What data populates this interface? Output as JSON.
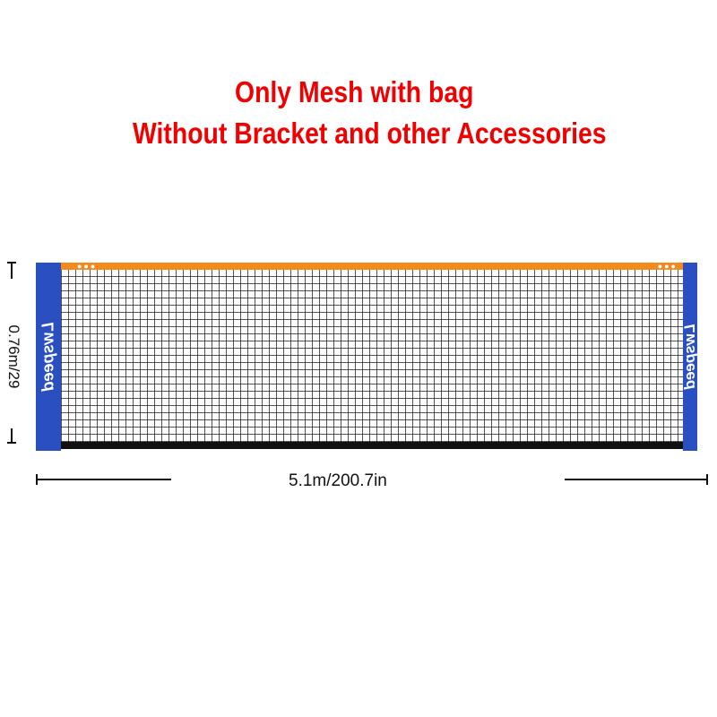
{
  "headline": {
    "line1": "Only Mesh with bag",
    "line2": "Without Bracket and other Accessories"
  },
  "product": {
    "brand_logo": "Lwspeed",
    "colors": {
      "post": "#2a4fc0",
      "top_band": "#f28a1e",
      "bottom_band": "#111111",
      "headline": "#f00000"
    }
  },
  "dimensions": {
    "height_label": "0.76m/29",
    "width_label": "5.1m/200.7in"
  }
}
